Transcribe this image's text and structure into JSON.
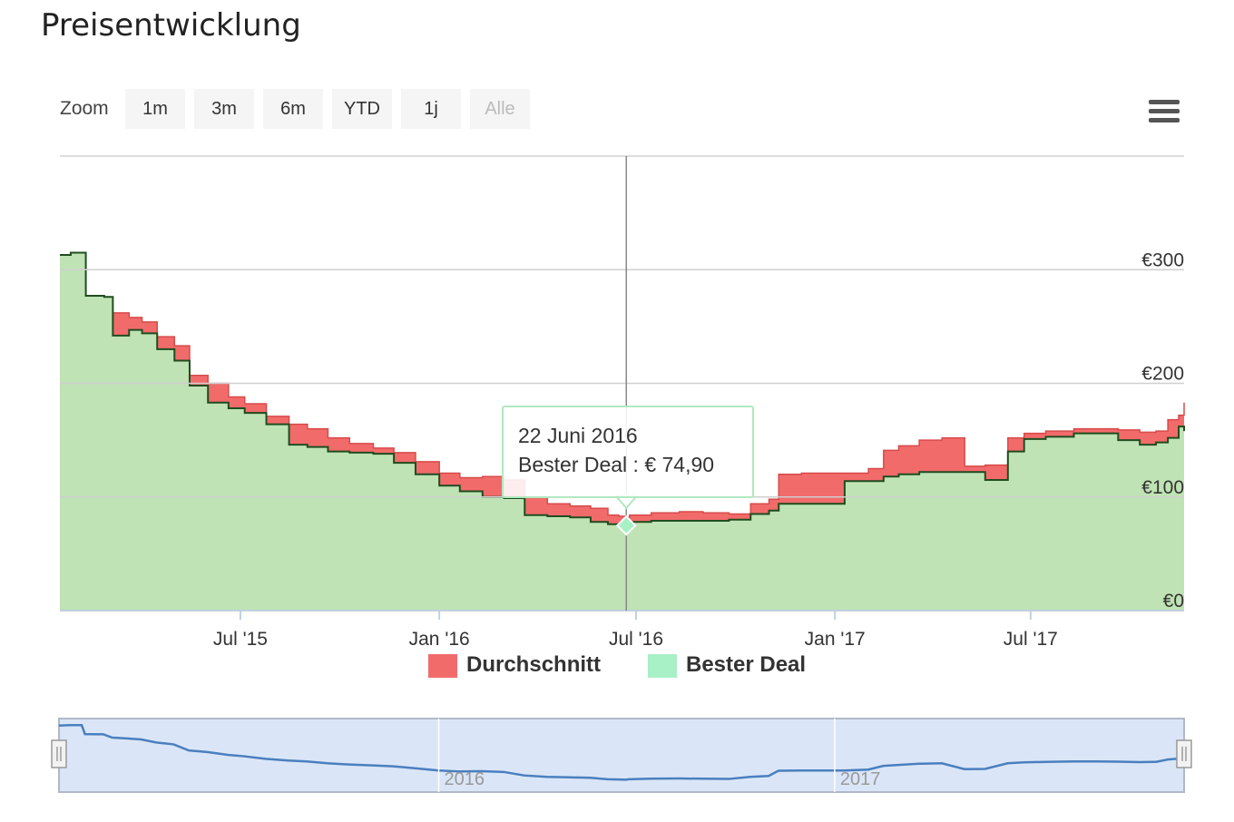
{
  "title": "Preisentwicklung",
  "zoom": {
    "label": "Zoom",
    "buttons": [
      "1m",
      "3m",
      "6m",
      "YTD",
      "1j",
      "Alle"
    ],
    "selected": "Alle"
  },
  "menu_icon": "hamburger-menu-icon",
  "tooltip": {
    "date": "22 Juni 2016",
    "text": "Bester Deal : € 74,90"
  },
  "navigator": {
    "labels": [
      "2016",
      "2017"
    ]
  },
  "colors": {
    "durchschnitt": "#f26b6b",
    "bester_deal_fill": "#bfe3b4",
    "bester_deal_line": "#1f4d1f",
    "legend_bester_deal": "#a8f0c6",
    "navigator_line": "#4a7fbf",
    "navigator_fill": "#dae6f7"
  },
  "chart_data": {
    "type": "area",
    "title": "",
    "xlabel": "",
    "ylabel": "",
    "ylim": [
      0,
      400
    ],
    "y_ticks": [
      0,
      100,
      200,
      300
    ],
    "y_tick_labels": [
      "€0",
      "€100",
      "€200",
      "€300"
    ],
    "x_ticks": [
      "2015-07-01",
      "2016-01-01",
      "2016-07-01",
      "2017-01-01",
      "2017-07-01"
    ],
    "x_tick_labels": [
      "Jul '15",
      "Jan '16",
      "Jul '16",
      "Jan '17",
      "Jul '17"
    ],
    "xlim": [
      "2015-01-15",
      "2017-11-20"
    ],
    "grid": true,
    "legend": "bottom-center",
    "crosshair_x": "2016-06-22",
    "highlight_point": {
      "x": "2016-06-22",
      "y": 74.9,
      "series": "Bester Deal"
    },
    "series": [
      {
        "name": "Durchschnitt",
        "points": [
          [
            "2015-01-15",
            313
          ],
          [
            "2015-01-25",
            315
          ],
          [
            "2015-02-05",
            315
          ],
          [
            "2015-02-08",
            277
          ],
          [
            "2015-02-25",
            276
          ],
          [
            "2015-03-05",
            262
          ],
          [
            "2015-03-20",
            258
          ],
          [
            "2015-04-01",
            254
          ],
          [
            "2015-04-15",
            241
          ],
          [
            "2015-05-01",
            233
          ],
          [
            "2015-05-15",
            207
          ],
          [
            "2015-06-01",
            200
          ],
          [
            "2015-06-20",
            188
          ],
          [
            "2015-07-05",
            182
          ],
          [
            "2015-07-25",
            171
          ],
          [
            "2015-08-15",
            164
          ],
          [
            "2015-09-01",
            160
          ],
          [
            "2015-09-20",
            152
          ],
          [
            "2015-10-10",
            147
          ],
          [
            "2015-11-01",
            143
          ],
          [
            "2015-11-20",
            139
          ],
          [
            "2015-12-10",
            131
          ],
          [
            "2016-01-01",
            121
          ],
          [
            "2016-01-20",
            117
          ],
          [
            "2016-02-10",
            118
          ],
          [
            "2016-03-01",
            115
          ],
          [
            "2016-03-20",
            100
          ],
          [
            "2016-04-10",
            94
          ],
          [
            "2016-05-01",
            92
          ],
          [
            "2016-05-20",
            90
          ],
          [
            "2016-06-05",
            84
          ],
          [
            "2016-06-15",
            83
          ],
          [
            "2016-06-22",
            82
          ],
          [
            "2016-06-25",
            84
          ],
          [
            "2016-07-15",
            86
          ],
          [
            "2016-08-10",
            87
          ],
          [
            "2016-09-01",
            86
          ],
          [
            "2016-09-25",
            85
          ],
          [
            "2016-10-15",
            94
          ],
          [
            "2016-11-01",
            98
          ],
          [
            "2016-11-10",
            120
          ],
          [
            "2016-12-01",
            121
          ],
          [
            "2016-12-25",
            121
          ],
          [
            "2017-01-10",
            121
          ],
          [
            "2017-02-01",
            125
          ],
          [
            "2017-02-15",
            141
          ],
          [
            "2017-03-01",
            145
          ],
          [
            "2017-03-20",
            150
          ],
          [
            "2017-04-10",
            152
          ],
          [
            "2017-05-01",
            127
          ],
          [
            "2017-05-20",
            128
          ],
          [
            "2017-06-10",
            152
          ],
          [
            "2017-06-25",
            156
          ],
          [
            "2017-07-15",
            158
          ],
          [
            "2017-08-10",
            160
          ],
          [
            "2017-09-01",
            160
          ],
          [
            "2017-09-20",
            159
          ],
          [
            "2017-10-10",
            157
          ],
          [
            "2017-10-25",
            158
          ],
          [
            "2017-11-05",
            168
          ],
          [
            "2017-11-15",
            172
          ],
          [
            "2017-11-20",
            183
          ]
        ]
      },
      {
        "name": "Bester Deal",
        "points": [
          [
            "2015-01-15",
            313
          ],
          [
            "2015-01-25",
            315
          ],
          [
            "2015-02-05",
            315
          ],
          [
            "2015-02-08",
            277
          ],
          [
            "2015-02-25",
            276
          ],
          [
            "2015-03-05",
            242
          ],
          [
            "2015-03-20",
            247
          ],
          [
            "2015-04-01",
            244
          ],
          [
            "2015-04-15",
            230
          ],
          [
            "2015-05-01",
            220
          ],
          [
            "2015-05-15",
            198
          ],
          [
            "2015-06-01",
            183
          ],
          [
            "2015-06-20",
            178
          ],
          [
            "2015-07-05",
            174
          ],
          [
            "2015-07-25",
            164
          ],
          [
            "2015-08-15",
            146
          ],
          [
            "2015-09-01",
            144
          ],
          [
            "2015-09-20",
            140
          ],
          [
            "2015-10-10",
            139
          ],
          [
            "2015-11-01",
            138
          ],
          [
            "2015-11-20",
            130
          ],
          [
            "2015-12-10",
            120
          ],
          [
            "2016-01-01",
            110
          ],
          [
            "2016-01-20",
            105
          ],
          [
            "2016-02-10",
            100
          ],
          [
            "2016-03-01",
            99
          ],
          [
            "2016-03-20",
            84
          ],
          [
            "2016-04-10",
            83
          ],
          [
            "2016-05-01",
            82
          ],
          [
            "2016-05-20",
            78
          ],
          [
            "2016-06-05",
            76
          ],
          [
            "2016-06-15",
            75
          ],
          [
            "2016-06-22",
            74.9
          ],
          [
            "2016-06-25",
            78
          ],
          [
            "2016-07-15",
            79
          ],
          [
            "2016-08-10",
            79
          ],
          [
            "2016-09-01",
            79
          ],
          [
            "2016-09-25",
            80
          ],
          [
            "2016-10-15",
            85
          ],
          [
            "2016-11-01",
            88
          ],
          [
            "2016-11-10",
            94
          ],
          [
            "2016-12-01",
            94
          ],
          [
            "2016-12-25",
            94
          ],
          [
            "2017-01-10",
            114
          ],
          [
            "2017-02-01",
            114
          ],
          [
            "2017-02-15",
            118
          ],
          [
            "2017-03-01",
            120
          ],
          [
            "2017-03-20",
            122
          ],
          [
            "2017-04-10",
            122
          ],
          [
            "2017-05-01",
            122
          ],
          [
            "2017-05-20",
            115
          ],
          [
            "2017-06-10",
            140
          ],
          [
            "2017-06-25",
            151
          ],
          [
            "2017-07-15",
            153
          ],
          [
            "2017-08-10",
            156
          ],
          [
            "2017-09-01",
            156
          ],
          [
            "2017-09-20",
            150
          ],
          [
            "2017-10-10",
            146
          ],
          [
            "2017-10-25",
            148
          ],
          [
            "2017-11-05",
            152
          ],
          [
            "2017-11-15",
            162
          ],
          [
            "2017-11-20",
            158
          ]
        ]
      }
    ]
  }
}
